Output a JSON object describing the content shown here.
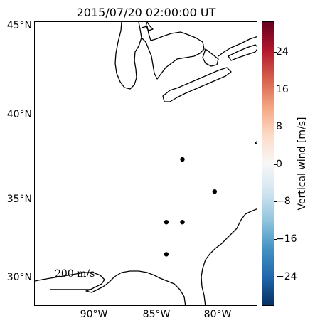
{
  "title": "2015/07/20 02:00:00 UT",
  "latitude_labels": [
    "45°N",
    "40°N",
    "35°N",
    "30°N"
  ],
  "longitude_labels": [
    "90°W",
    "85°W",
    "80°W"
  ],
  "colorbar": {
    "label": "Vertical wind [m/s]",
    "ticks": [
      "24",
      "16",
      "8",
      "0",
      "−8",
      "−16",
      "−24"
    ],
    "colors": [
      "#053061",
      "#2166ac",
      "#4393c3",
      "#92c5de",
      "#d1e5f0",
      "#f7f7f7",
      "#fddbc7",
      "#f4a582",
      "#d6604d",
      "#b2182b",
      "#67001f"
    ]
  },
  "scale_arrow": {
    "label": "200 m/s"
  },
  "stations": [
    {
      "lon": -82.9,
      "lat": 37.3
    },
    {
      "lon": -80.3,
      "lat": 35.3
    },
    {
      "lon": -84.2,
      "lat": 33.4
    },
    {
      "lon": -82.9,
      "lat": 33.4
    },
    {
      "lon": -84.2,
      "lat": 31.4
    }
  ]
}
